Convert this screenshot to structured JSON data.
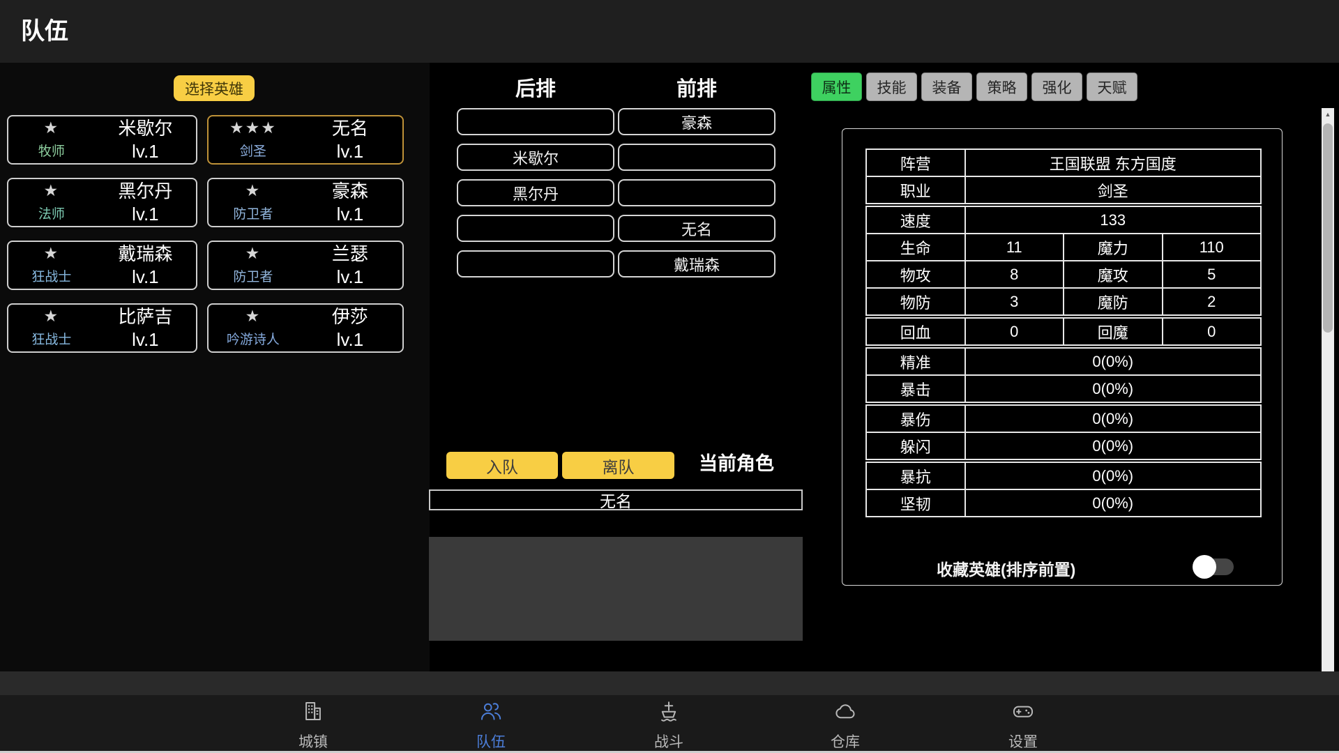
{
  "header": {
    "title": "队伍"
  },
  "hero_panel": {
    "select_button": "选择英雄",
    "heroes": [
      {
        "stars": "★",
        "name": "米歇尔",
        "class": "牧师",
        "class_color": "#8ecf9f",
        "level": "lv.1",
        "selected": false
      },
      {
        "stars": "★★★",
        "name": "无名",
        "class": "剑圣",
        "class_color": "#8caede",
        "level": "lv.1",
        "selected": true
      },
      {
        "stars": "★",
        "name": "黑尔丹",
        "class": "法师",
        "class_color": "#7cc9b1",
        "level": "lv.1",
        "selected": false
      },
      {
        "stars": "★",
        "name": "豪森",
        "class": "防卫者",
        "class_color": "#92b6dd",
        "level": "lv.1",
        "selected": false
      },
      {
        "stars": "★",
        "name": "戴瑞森",
        "class": "狂战士",
        "class_color": "#87b9e0",
        "level": "lv.1",
        "selected": false
      },
      {
        "stars": "★",
        "name": "兰瑟",
        "class": "防卫者",
        "class_color": "#92b6dd",
        "level": "lv.1",
        "selected": false
      },
      {
        "stars": "★",
        "name": "比萨吉",
        "class": "狂战士",
        "class_color": "#87b9e0",
        "level": "lv.1",
        "selected": false
      },
      {
        "stars": "★",
        "name": "伊莎",
        "class": "吟游诗人",
        "class_color": "#84a9dc",
        "level": "lv.1",
        "selected": false
      }
    ]
  },
  "formation": {
    "back_label": "后排",
    "front_label": "前排",
    "back_slots": [
      "",
      "米歇尔",
      "黑尔丹",
      "",
      ""
    ],
    "front_slots": [
      "豪森",
      "",
      "",
      "无名",
      "戴瑞森"
    ],
    "join_button": "入队",
    "leave_button": "离队",
    "current_label": "当前角色",
    "current_name": "无名"
  },
  "detail_panel": {
    "tabs": [
      {
        "label": "属性",
        "active": true
      },
      {
        "label": "技能",
        "active": false
      },
      {
        "label": "装备",
        "active": false
      },
      {
        "label": "策略",
        "active": false
      },
      {
        "label": "强化",
        "active": false
      },
      {
        "label": "天赋",
        "active": false
      }
    ],
    "stats_rows": [
      {
        "label": "阵营",
        "value": "王国联盟 东方国度",
        "span": true
      },
      {
        "label": "职业",
        "value": "剑圣",
        "span": true
      },
      {
        "label": "速度",
        "value": "133",
        "span": true,
        "group": true
      },
      {
        "label": "生命",
        "value": "11",
        "label2": "魔力",
        "value2": "110"
      },
      {
        "label": "物攻",
        "value": "8",
        "label2": "魔攻",
        "value2": "5"
      },
      {
        "label": "物防",
        "value": "3",
        "label2": "魔防",
        "value2": "2"
      },
      {
        "label": "回血",
        "value": "0",
        "label2": "回魔",
        "value2": "0",
        "group": true
      },
      {
        "label": "精准",
        "value": "0(0%)",
        "span": true,
        "group": true
      },
      {
        "label": "暴击",
        "value": "0(0%)",
        "span": true
      },
      {
        "label": "暴伤",
        "value": "0(0%)",
        "span": true,
        "group": true
      },
      {
        "label": "躲闪",
        "value": "0(0%)",
        "span": true
      },
      {
        "label": "暴抗",
        "value": "0(0%)",
        "span": true,
        "group": true
      },
      {
        "label": "坚韧",
        "value": "0(0%)",
        "span": true
      }
    ],
    "favorite_toggle": {
      "label": "收藏英雄(排序前置)",
      "state": "off"
    }
  },
  "navbar": {
    "items": [
      {
        "label": "城镇",
        "icon": "building-icon",
        "active": false
      },
      {
        "label": "队伍",
        "icon": "team-icon",
        "active": true
      },
      {
        "label": "战斗",
        "icon": "ship-icon",
        "active": false
      },
      {
        "label": "仓库",
        "icon": "cloud-icon",
        "active": false
      },
      {
        "label": "设置",
        "icon": "gamepad-icon",
        "active": false
      }
    ],
    "active_color": "#4c7ed9"
  },
  "colors": {
    "accent_yellow": "#f8ce44",
    "active_tab_green": "#3ed160",
    "selected_card_border": "#bf9238",
    "nav_active_blue": "#4c7ed9"
  }
}
